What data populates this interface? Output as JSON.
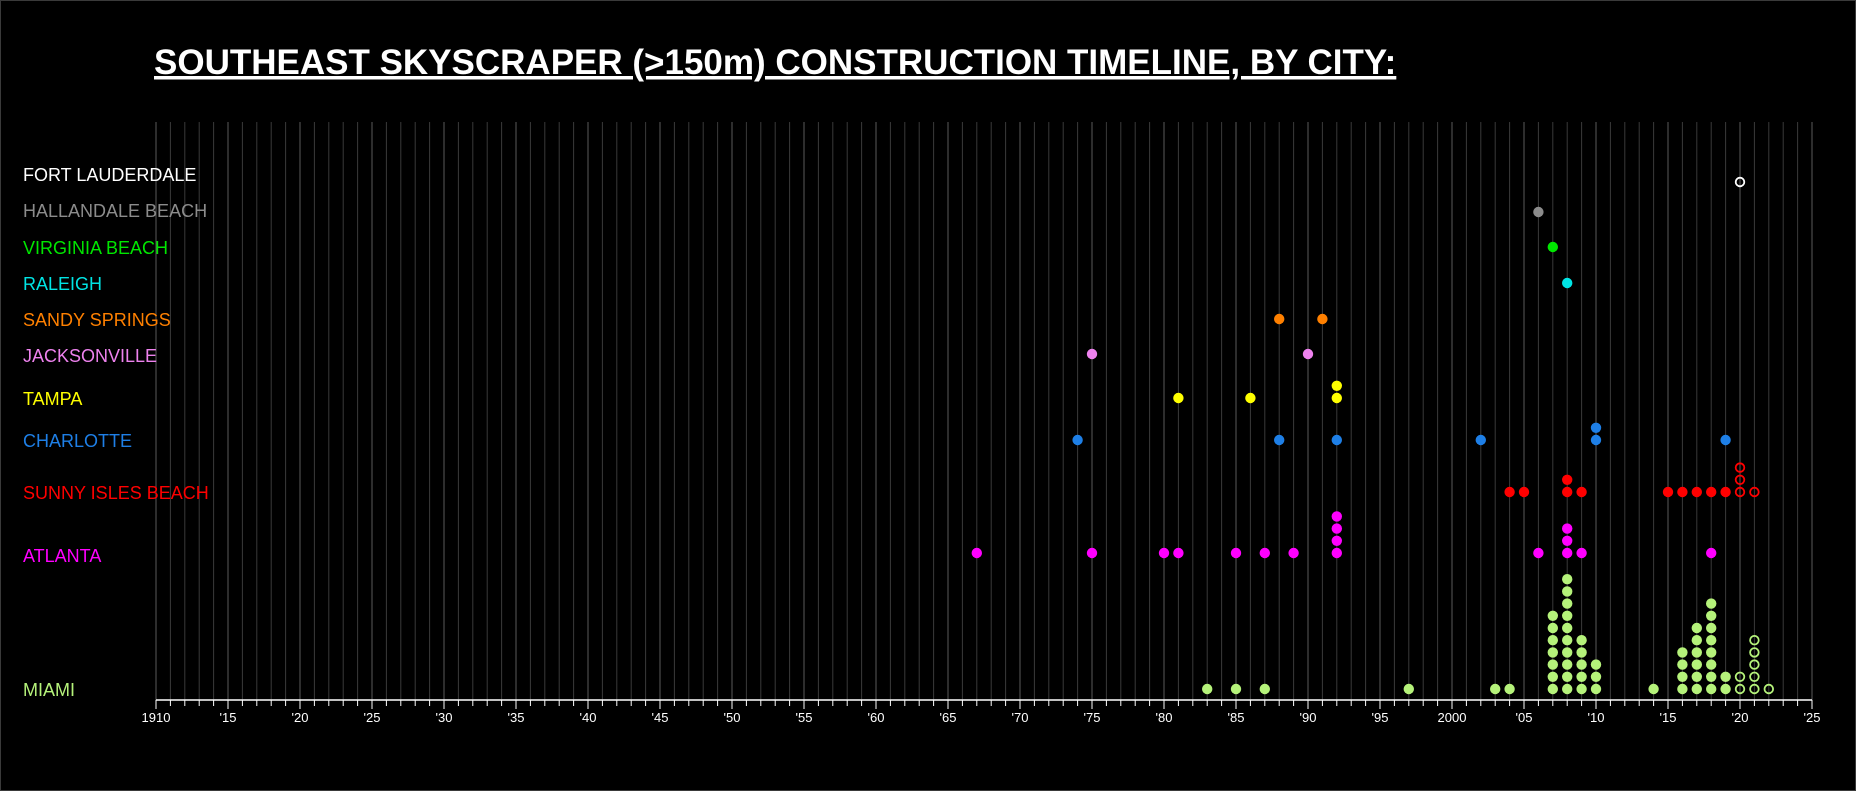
{
  "chart_data": {
    "type": "scatter",
    "title": "SOUTHEAST SKYSCRAPER (>150m) CONSTRUCTION TIMELINE, BY CITY:",
    "xlim": [
      1910,
      2025
    ],
    "x_tick_labels": [
      {
        "year": 1910,
        "label": "1910"
      },
      {
        "year": 1915,
        "label": "'15"
      },
      {
        "year": 1920,
        "label": "'20"
      },
      {
        "year": 1925,
        "label": "'25"
      },
      {
        "year": 1930,
        "label": "'30"
      },
      {
        "year": 1935,
        "label": "'35"
      },
      {
        "year": 1940,
        "label": "'40"
      },
      {
        "year": 1945,
        "label": "'45"
      },
      {
        "year": 1950,
        "label": "'50"
      },
      {
        "year": 1955,
        "label": "'55"
      },
      {
        "year": 1960,
        "label": "'60"
      },
      {
        "year": 1965,
        "label": "'65"
      },
      {
        "year": 1970,
        "label": "'70"
      },
      {
        "year": 1975,
        "label": "'75"
      },
      {
        "year": 1980,
        "label": "'80"
      },
      {
        "year": 1985,
        "label": "'85"
      },
      {
        "year": 1990,
        "label": "'90"
      },
      {
        "year": 1995,
        "label": "'95"
      },
      {
        "year": 2000,
        "label": "2000"
      },
      {
        "year": 2005,
        "label": "'05"
      },
      {
        "year": 2010,
        "label": "'10"
      },
      {
        "year": 2015,
        "label": "'15"
      },
      {
        "year": 2020,
        "label": "'20"
      },
      {
        "year": 2025,
        "label": "'25"
      }
    ],
    "grid": true,
    "series": [
      {
        "name": "FORT LAUDERDALE",
        "color": "#ffffff",
        "completed": [],
        "under_construction": [
          [
            2020,
            1
          ]
        ]
      },
      {
        "name": "HALLANDALE BEACH",
        "color": "#8c8c8c",
        "completed": [
          [
            2006,
            1
          ]
        ],
        "under_construction": []
      },
      {
        "name": "VIRGINIA BEACH",
        "color": "#00e600",
        "completed": [
          [
            2007,
            1
          ]
        ],
        "under_construction": []
      },
      {
        "name": "RALEIGH",
        "color": "#00e5e5",
        "completed": [
          [
            2008,
            1
          ]
        ],
        "under_construction": []
      },
      {
        "name": "SANDY SPRINGS",
        "color": "#ff8000",
        "completed": [
          [
            1988,
            1
          ],
          [
            1991,
            1
          ]
        ],
        "under_construction": []
      },
      {
        "name": "JACKSONVILLE",
        "color": "#ee82ee",
        "completed": [
          [
            1975,
            1
          ],
          [
            1990,
            1
          ]
        ],
        "under_construction": []
      },
      {
        "name": "TAMPA",
        "color": "#ffff00",
        "completed": [
          [
            1981,
            1
          ],
          [
            1986,
            1
          ],
          [
            1992,
            2
          ]
        ],
        "under_construction": []
      },
      {
        "name": "CHARLOTTE",
        "color": "#1e7fe6",
        "completed": [
          [
            1974,
            1
          ],
          [
            1988,
            1
          ],
          [
            1992,
            1
          ],
          [
            2002,
            1
          ],
          [
            2010,
            2
          ],
          [
            2019,
            1
          ]
        ],
        "under_construction": []
      },
      {
        "name": "SUNNY ISLES BEACH",
        "color": "#ff0000",
        "completed": [
          [
            2004,
            1
          ],
          [
            2005,
            1
          ],
          [
            2008,
            2
          ],
          [
            2009,
            1
          ],
          [
            2015,
            1
          ],
          [
            2016,
            1
          ],
          [
            2017,
            1
          ],
          [
            2018,
            1
          ],
          [
            2019,
            1
          ]
        ],
        "under_construction": [
          [
            2020,
            3
          ],
          [
            2021,
            1
          ]
        ]
      },
      {
        "name": "ATLANTA",
        "color": "#ff00ff",
        "completed": [
          [
            1967,
            1
          ],
          [
            1975,
            1
          ],
          [
            1980,
            1
          ],
          [
            1981,
            1
          ],
          [
            1985,
            1
          ],
          [
            1987,
            1
          ],
          [
            1989,
            1
          ],
          [
            1992,
            4
          ],
          [
            2006,
            1
          ],
          [
            2008,
            3
          ],
          [
            2009,
            1
          ],
          [
            2018,
            1
          ]
        ],
        "under_construction": []
      },
      {
        "name": "MIAMI",
        "color": "#b5f27a",
        "completed": [
          [
            1983,
            1
          ],
          [
            1985,
            1
          ],
          [
            1987,
            1
          ],
          [
            1997,
            1
          ],
          [
            2003,
            1
          ],
          [
            2004,
            1
          ],
          [
            2007,
            7
          ],
          [
            2008,
            10
          ],
          [
            2009,
            5
          ],
          [
            2010,
            3
          ],
          [
            2014,
            1
          ],
          [
            2016,
            4
          ],
          [
            2017,
            6
          ],
          [
            2018,
            8
          ],
          [
            2019,
            2
          ]
        ],
        "under_construction": [
          [
            2020,
            2
          ],
          [
            2021,
            5
          ],
          [
            2022,
            1
          ]
        ]
      }
    ]
  }
}
